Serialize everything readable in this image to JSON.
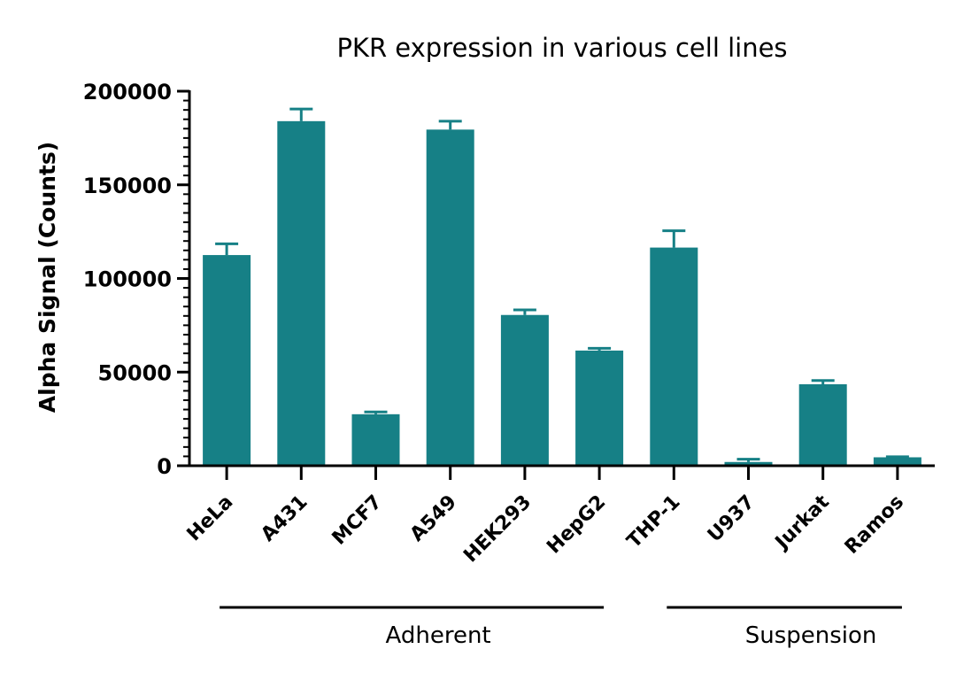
{
  "chart_data": {
    "type": "bar",
    "title": "PKR expression in various cell lines",
    "xlabel": "",
    "ylabel": "Alpha Signal (Counts)",
    "ylim": [
      0,
      200000
    ],
    "yticks": [
      "0",
      "50000",
      "100000",
      "150000",
      "200000"
    ],
    "categories": [
      "HeLa",
      "A431",
      "MCF7",
      "A549",
      "HEK293",
      "HepG2",
      "THP-1",
      "U937",
      "Jurkat",
      "Ramos"
    ],
    "values": [
      112500,
      184000,
      27500,
      179500,
      80500,
      61500,
      116500,
      2000,
      43500,
      4500
    ],
    "error_upper": [
      6000,
      6500,
      1200,
      4500,
      2700,
      1200,
      9000,
      1500,
      2000,
      300
    ],
    "groups": [
      {
        "label": "Adherent",
        "categories": [
          "HeLa",
          "A431",
          "MCF7",
          "A549",
          "HEK293",
          "HepG2"
        ]
      },
      {
        "label": "Suspension",
        "categories": [
          "THP-1",
          "U937",
          "Jurkat",
          "Ramos"
        ]
      }
    ],
    "bar_color": "#168086",
    "grid": false,
    "legend": "none"
  }
}
